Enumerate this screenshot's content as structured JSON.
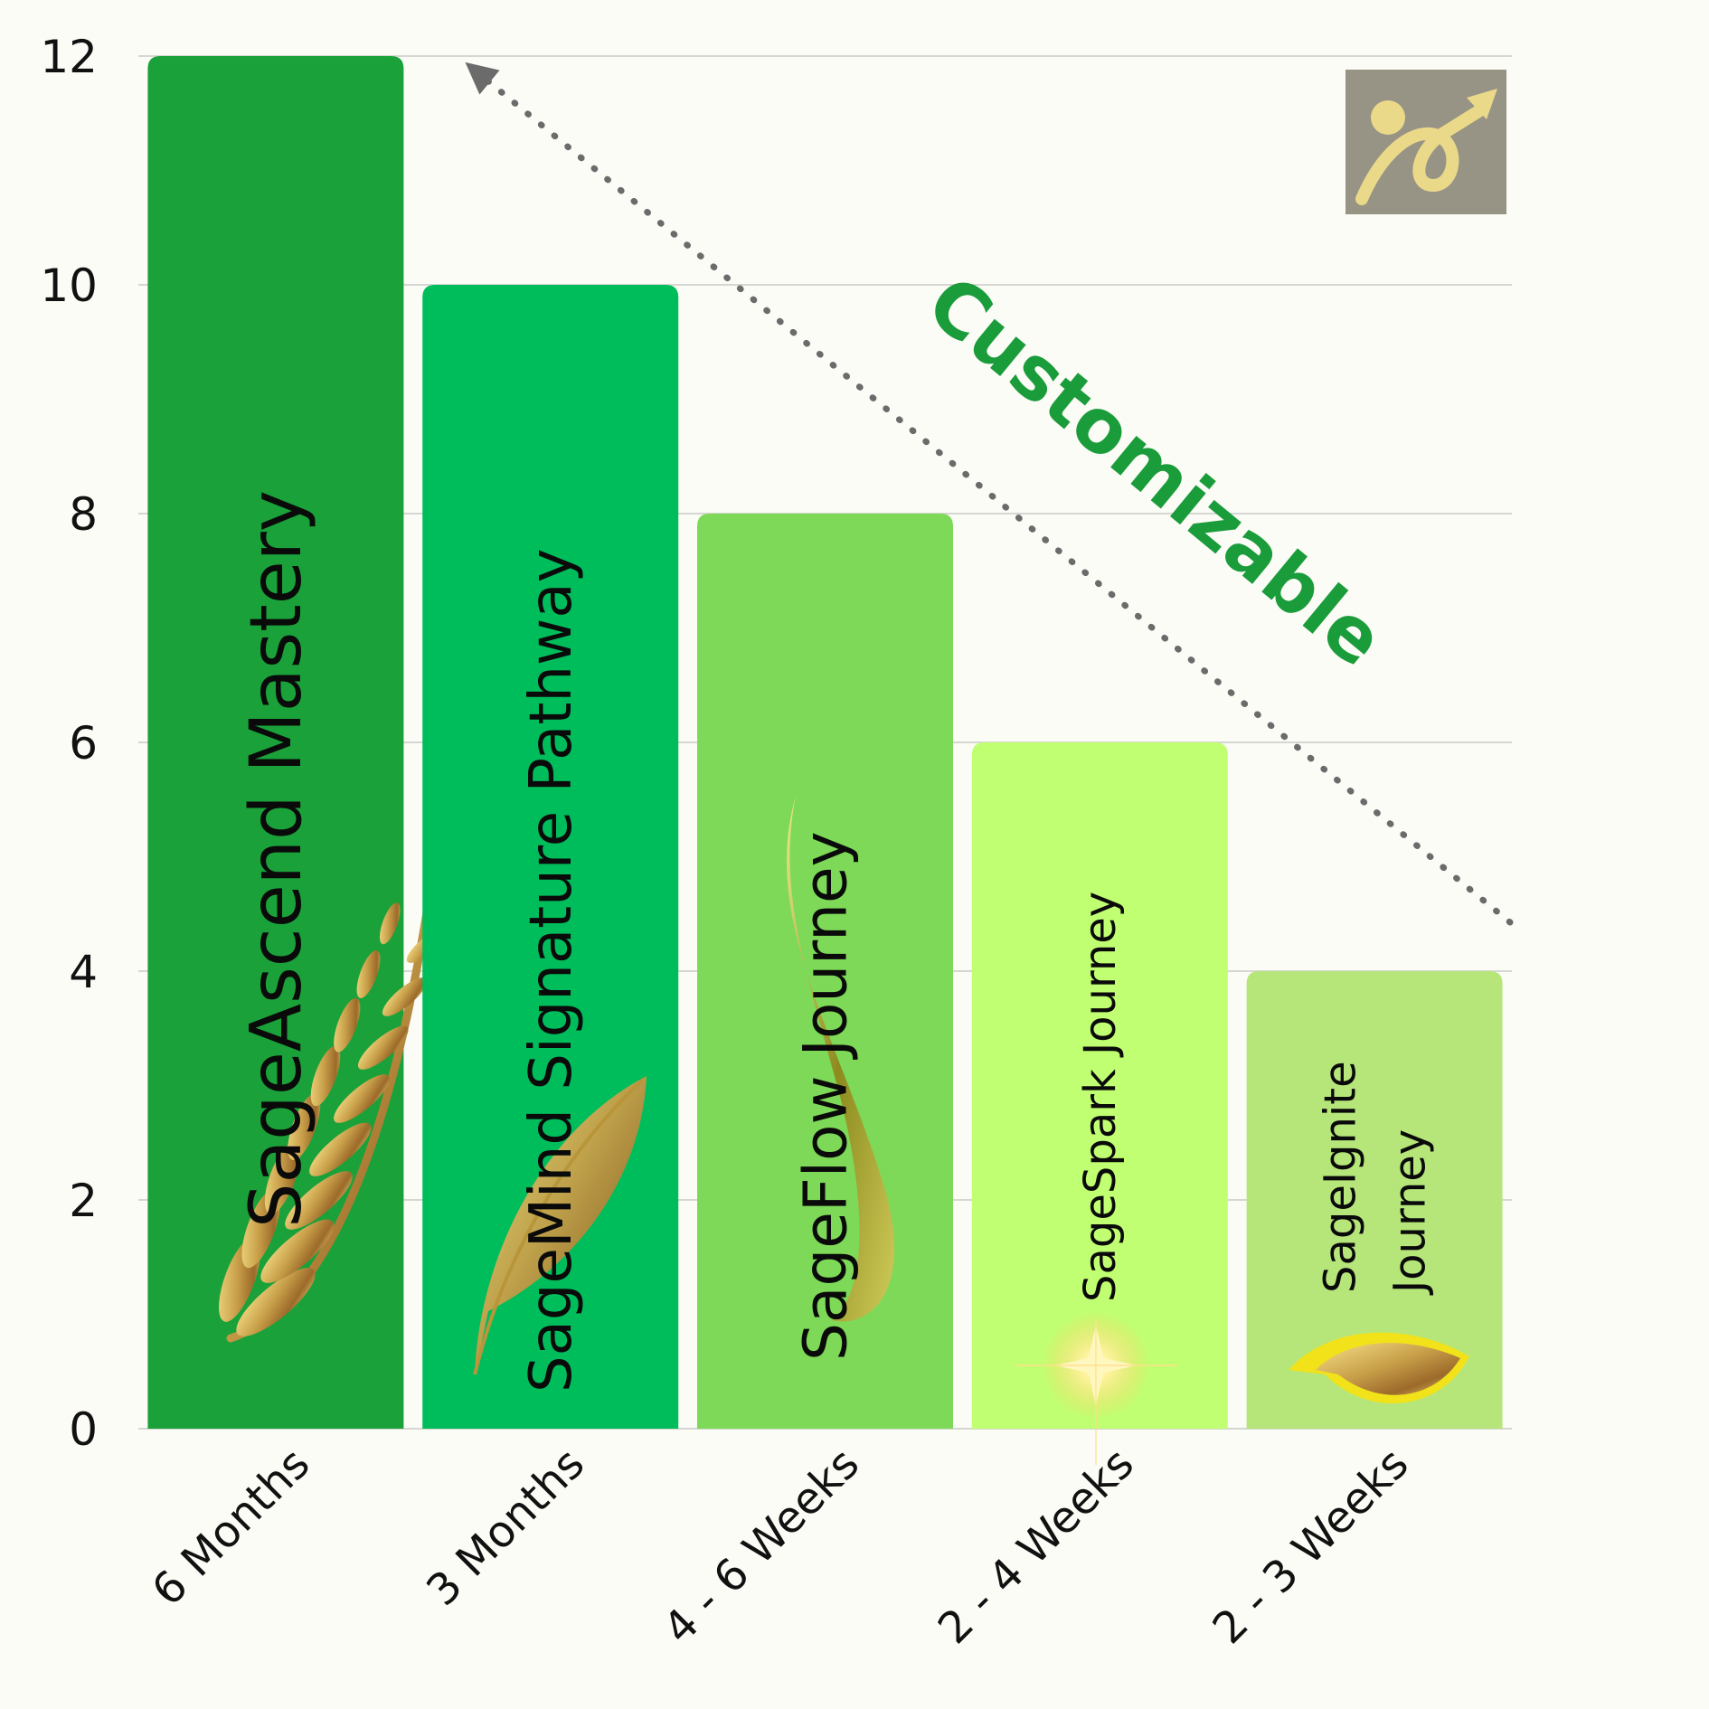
{
  "chart_data": {
    "type": "bar",
    "title": "",
    "xlabel": "",
    "ylabel": "",
    "ylim": [
      0,
      12
    ],
    "yticks": [
      0,
      2,
      4,
      6,
      8,
      10,
      12
    ],
    "grid": true,
    "categories": [
      "6 Months",
      "3 Months",
      "4 - 6 Weeks",
      "2 - 4 Weeks",
      "2 - 3 Weeks"
    ],
    "values": [
      12,
      10,
      8,
      6,
      4
    ],
    "bar_labels": [
      [
        "SageAscend Mastery"
      ],
      [
        "SageMind Signature Pathway"
      ],
      [
        "SageFlow Journey"
      ],
      [
        "SageSpark Journey"
      ],
      [
        "SageIgnite",
        "Journey"
      ]
    ],
    "bar_icons": [
      "wheat-icon",
      "feather-icon",
      "swoosh-icon",
      "sparkle-icon",
      "leaf-icon"
    ],
    "bar_colors": [
      "#1aa13a",
      "#00bd5c",
      "#7dd957",
      "#c1ff72",
      "#b6e67a"
    ],
    "annotation": "Customizable",
    "annotation_color": "#1a9c3b",
    "trend_arrow_color": "#6b6b6b",
    "logo": "growth-logo-icon"
  }
}
